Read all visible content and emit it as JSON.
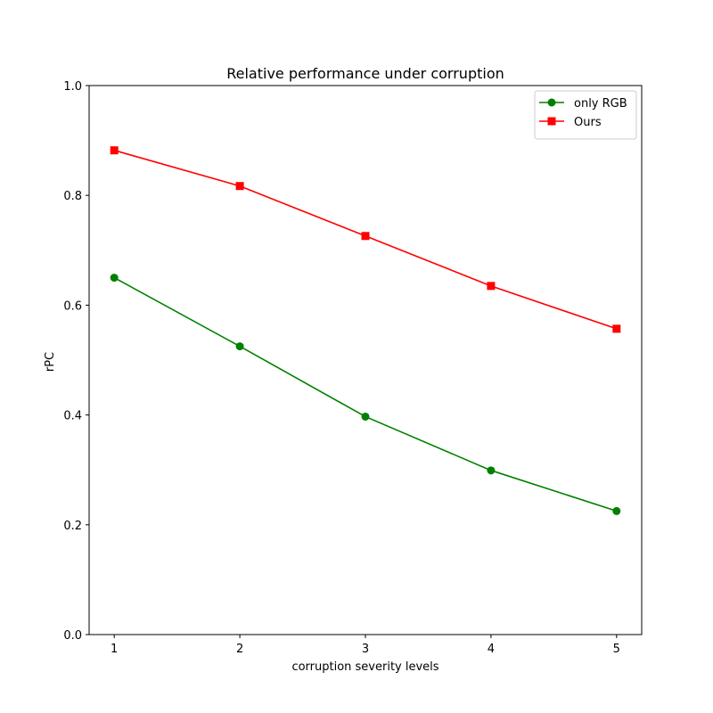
{
  "chart_data": {
    "type": "line",
    "title": "Relative performance under corruption",
    "xlabel": "corruption severity levels",
    "ylabel": "rPC",
    "x": [
      1,
      2,
      3,
      4,
      5
    ],
    "xticks": [
      "1",
      "2",
      "3",
      "4",
      "5"
    ],
    "yticks": [
      "0.0",
      "0.2",
      "0.4",
      "0.6",
      "0.8",
      "1.0"
    ],
    "ytick_values": [
      0.0,
      0.2,
      0.4,
      0.6,
      0.8,
      1.0
    ],
    "xlim": [
      0.8,
      5.2
    ],
    "ylim": [
      0.0,
      1.0
    ],
    "grid": false,
    "legend_position": "top-right",
    "series": [
      {
        "name": "only RGB",
        "color": "#008000",
        "marker": "circle",
        "values": [
          0.65,
          0.525,
          0.397,
          0.299,
          0.225
        ]
      },
      {
        "name": "Ours",
        "color": "#ff0000",
        "marker": "square",
        "values": [
          0.882,
          0.817,
          0.726,
          0.635,
          0.557
        ]
      }
    ]
  }
}
